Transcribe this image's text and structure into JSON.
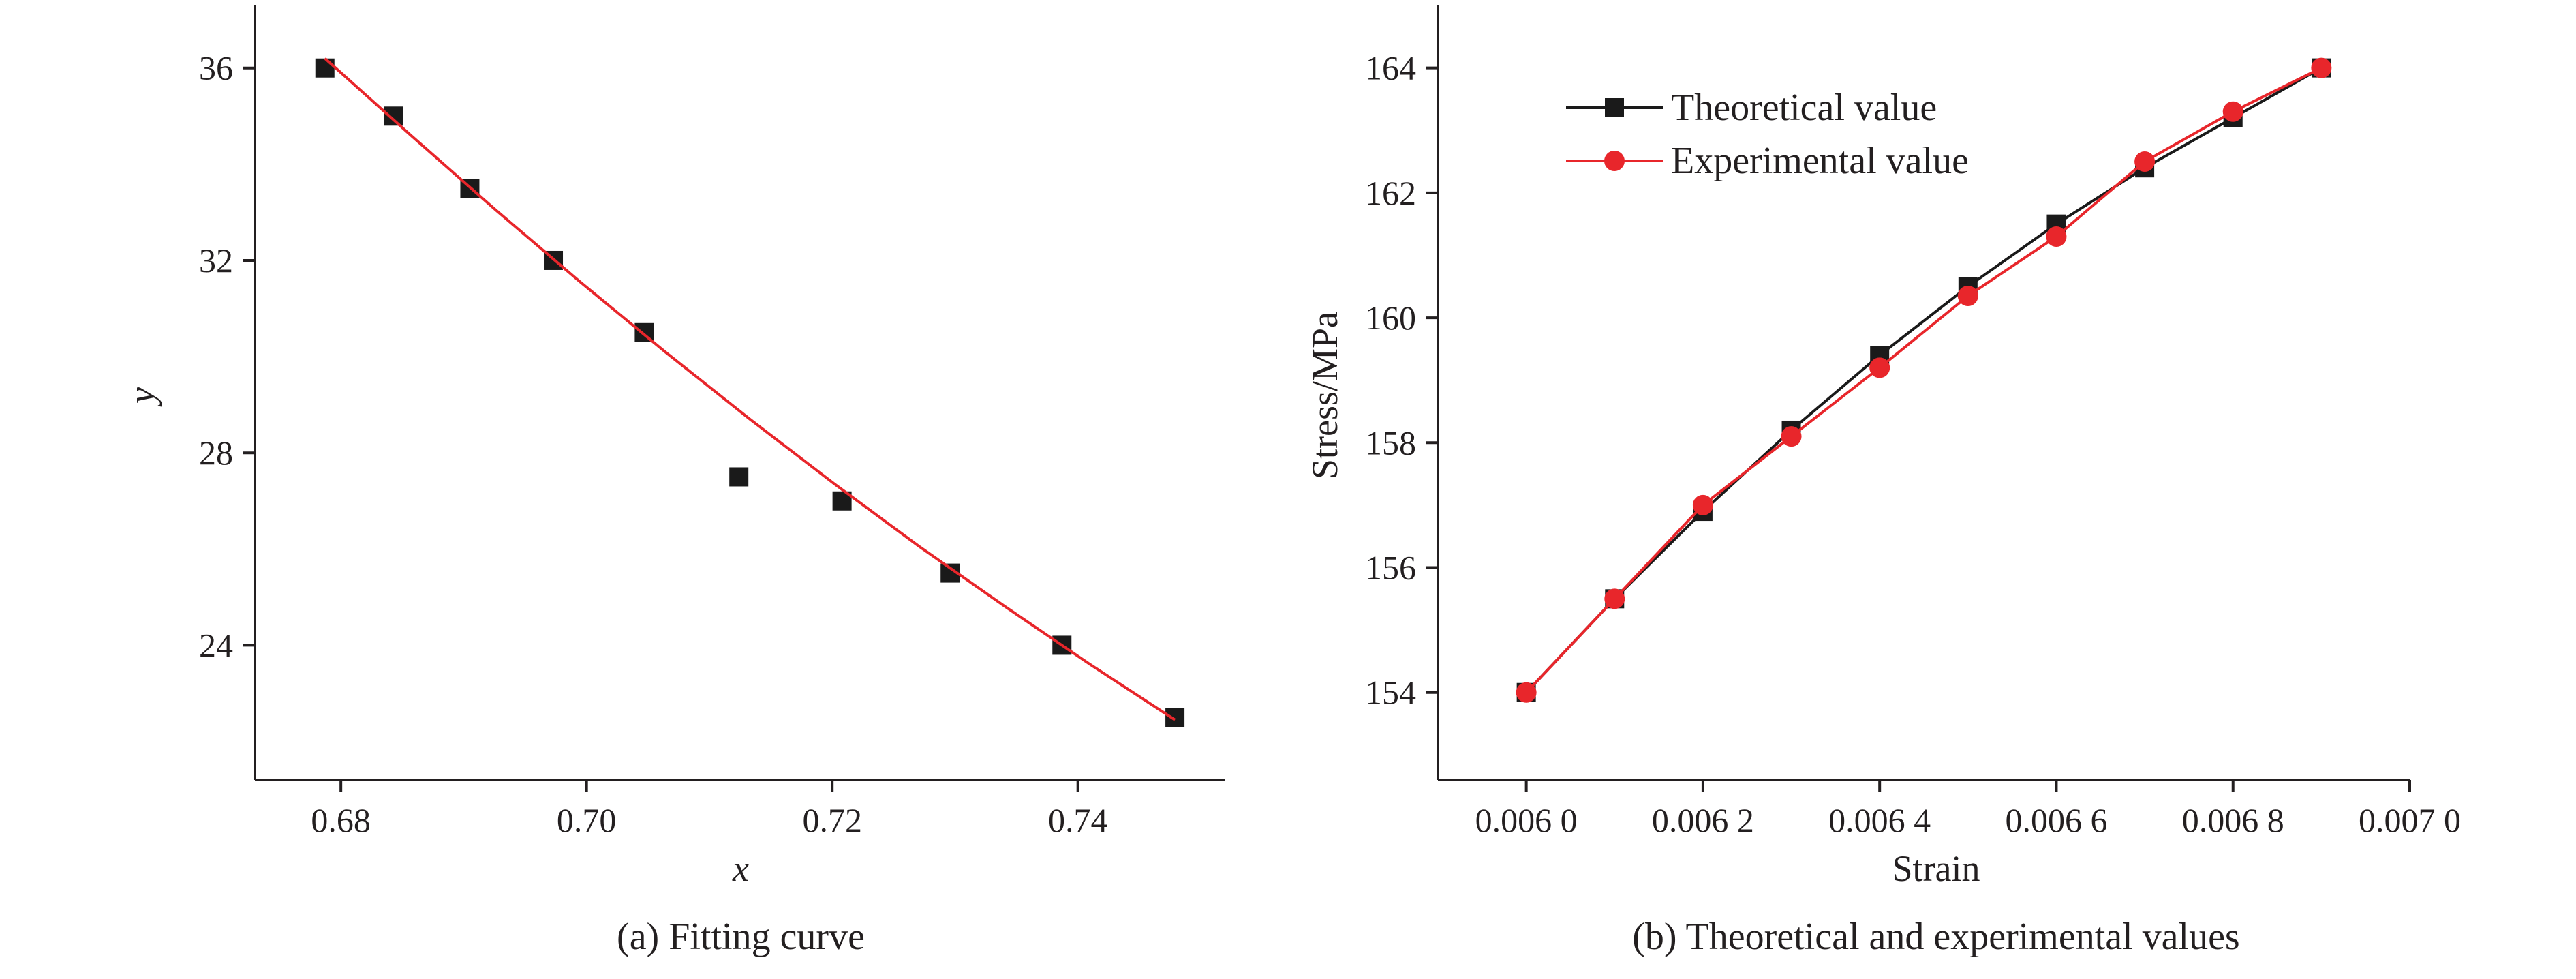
{
  "chart_data": [
    {
      "type": "scatter",
      "caption": "(a) Fitting curve",
      "xlabel": "x",
      "ylabel": "y",
      "xlim": [
        0.673,
        0.752
      ],
      "ylim": [
        21.2,
        37.3
      ],
      "xticks": [
        0.68,
        0.7,
        0.72,
        0.74
      ],
      "xtick_labels": [
        "0.68",
        "0.70",
        "0.72",
        "0.74"
      ],
      "yticks": [
        24,
        28,
        32,
        36
      ],
      "ytick_labels": [
        "24",
        "28",
        "32",
        "36"
      ],
      "grid": false,
      "series": [
        {
          "kind": "points",
          "marker": "square",
          "color": "#1a1a1a",
          "x": [
            0.6787,
            0.6843,
            0.6905,
            0.6973,
            0.7047,
            0.7124,
            0.7208,
            0.7296,
            0.7387,
            0.7479
          ],
          "y": [
            36.0,
            35.0,
            33.5,
            32.0,
            30.5,
            27.5,
            27.0,
            25.5,
            24.0,
            22.5
          ]
        },
        {
          "kind": "curve",
          "color": "#e8262b",
          "x": [
            0.6787,
            0.6857,
            0.6926,
            0.6995,
            0.7064,
            0.7133,
            0.7202,
            0.7271,
            0.7341,
            0.741,
            0.7479
          ],
          "y": [
            36.2,
            34.6,
            33.05,
            31.55,
            30.1,
            28.7,
            27.35,
            26.05,
            24.8,
            23.6,
            22.45
          ]
        }
      ]
    },
    {
      "type": "line",
      "caption": "(b) Theoretical and experimental values",
      "xlabel": "Strain",
      "ylabel": "Stress/MPa",
      "xlim": [
        0.0059,
        0.007
      ],
      "ylim": [
        152.6,
        165.0
      ],
      "xticks": [
        0.006,
        0.0062,
        0.0064,
        0.0066,
        0.0068,
        0.007
      ],
      "xtick_labels": [
        "0.006 0",
        "0.006 2",
        "0.006 4",
        "0.006 6",
        "0.006 8",
        "0.007 0"
      ],
      "yticks": [
        154,
        156,
        158,
        160,
        162,
        164
      ],
      "ytick_labels": [
        "154",
        "156",
        "158",
        "160",
        "162",
        "164"
      ],
      "grid": false,
      "legend_position": "top-left",
      "series": [
        {
          "name": "Theoretical value",
          "marker": "square",
          "color": "#1a1a1a",
          "x": [
            0.006,
            0.0061,
            0.0062,
            0.0063,
            0.0064,
            0.0065,
            0.0066,
            0.0067,
            0.0068,
            0.0069
          ],
          "y": [
            154.0,
            155.5,
            156.9,
            158.2,
            159.4,
            160.5,
            161.5,
            162.4,
            163.2,
            164.0
          ]
        },
        {
          "name": "Experimental value",
          "marker": "circle",
          "color": "#e8262b",
          "x": [
            0.006,
            0.0061,
            0.0062,
            0.0063,
            0.0064,
            0.0065,
            0.0066,
            0.0067,
            0.0068,
            0.0069
          ],
          "y": [
            154.0,
            155.5,
            157.0,
            158.1,
            159.2,
            160.35,
            161.3,
            162.5,
            163.3,
            164.0
          ]
        }
      ]
    }
  ]
}
